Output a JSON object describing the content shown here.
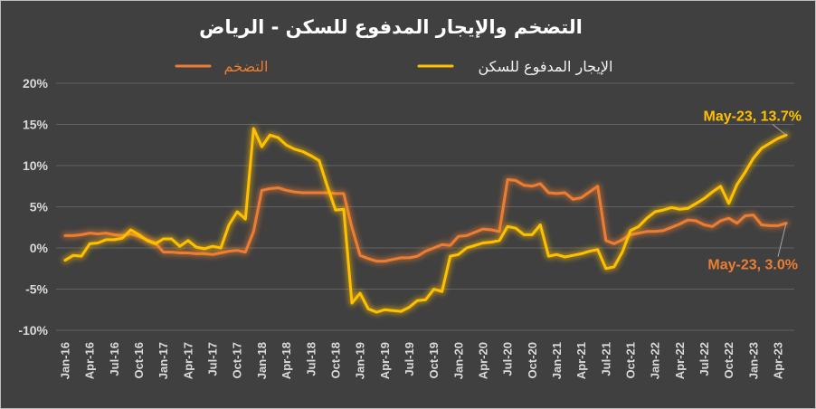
{
  "chart_data": {
    "type": "line",
    "title": "التضخم والإيجار المدفوع للسكن - الرياض",
    "background_color": "#404040",
    "grid": true,
    "legend": "top",
    "ylim": [
      -10,
      20
    ],
    "y_tick_labels": [
      "20%",
      "15%",
      "10%",
      "5%",
      "0%",
      "-5%",
      "-10%"
    ],
    "x_tick_labels": [
      "Jan-16",
      "Apr-16",
      "Jul-16",
      "Oct-16",
      "Jan-17",
      "Apr-17",
      "Jul-17",
      "Oct-17",
      "Jan-18",
      "Apr-18",
      "Jul-18",
      "Oct-18",
      "Jan-19",
      "Apr-19",
      "Jul-19",
      "Oct-19",
      "Jan-20",
      "Apr-20",
      "Jul-20",
      "Oct-20",
      "Jan-21",
      "Apr-21",
      "Jul-21",
      "Oct-21",
      "Jan-22",
      "Apr-22",
      "Jul-22",
      "Oct-22",
      "Jan-23",
      "Apr-23"
    ],
    "x": [
      "Jan-16",
      "Feb-16",
      "Mar-16",
      "Apr-16",
      "May-16",
      "Jun-16",
      "Jul-16",
      "Aug-16",
      "Sep-16",
      "Oct-16",
      "Nov-16",
      "Dec-16",
      "Jan-17",
      "Feb-17",
      "Mar-17",
      "Apr-17",
      "May-17",
      "Jun-17",
      "Jul-17",
      "Aug-17",
      "Sep-17",
      "Oct-17",
      "Nov-17",
      "Dec-17",
      "Jan-18",
      "Feb-18",
      "Mar-18",
      "Apr-18",
      "May-18",
      "Jun-18",
      "Jul-18",
      "Aug-18",
      "Sep-18",
      "Oct-18",
      "Nov-18",
      "Dec-18",
      "Jan-19",
      "Feb-19",
      "Mar-19",
      "Apr-19",
      "May-19",
      "Jun-19",
      "Jul-19",
      "Aug-19",
      "Sep-19",
      "Oct-19",
      "Nov-19",
      "Dec-19",
      "Jan-20",
      "Feb-20",
      "Mar-20",
      "Apr-20",
      "May-20",
      "Jun-20",
      "Jul-20",
      "Aug-20",
      "Sep-20",
      "Oct-20",
      "Nov-20",
      "Dec-20",
      "Jan-21",
      "Feb-21",
      "Mar-21",
      "Apr-21",
      "May-21",
      "Jun-21",
      "Jul-21",
      "Aug-21",
      "Sep-21",
      "Oct-21",
      "Nov-21",
      "Dec-21",
      "Jan-22",
      "Feb-22",
      "Mar-22",
      "Apr-22",
      "May-22",
      "Jun-22",
      "Jul-22",
      "Aug-22",
      "Sep-22",
      "Oct-22",
      "Nov-22",
      "Dec-22",
      "Jan-23",
      "Feb-23",
      "Mar-23",
      "Apr-23",
      "May-23"
    ],
    "series": [
      {
        "name": "التضخم",
        "color": "#ED7D31",
        "values": [
          1.5,
          1.5,
          1.6,
          1.8,
          1.7,
          1.8,
          1.6,
          1.5,
          1.7,
          1.4,
          1.0,
          0.6,
          -0.5,
          -0.5,
          -0.6,
          -0.6,
          -0.7,
          -0.7,
          -0.8,
          -0.6,
          -0.4,
          -0.3,
          -0.5,
          2.0,
          7.0,
          7.2,
          7.3,
          7.0,
          6.8,
          6.7,
          6.7,
          6.7,
          6.7,
          6.6,
          6.6,
          2.5,
          -0.9,
          -1.3,
          -1.6,
          -1.6,
          -1.4,
          -1.2,
          -1.2,
          -1.0,
          -0.4,
          0.0,
          0.4,
          0.3,
          1.4,
          1.5,
          1.9,
          2.3,
          2.2,
          2.0,
          8.3,
          8.2,
          7.6,
          7.5,
          7.8,
          6.7,
          6.6,
          6.7,
          5.9,
          6.1,
          6.8,
          7.5,
          0.9,
          0.5,
          1.0,
          1.6,
          1.8,
          2.0,
          2.0,
          2.1,
          2.5,
          2.9,
          3.4,
          3.3,
          2.8,
          2.6,
          3.3,
          3.6,
          3.0,
          3.9,
          4.0,
          2.8,
          2.7,
          2.7,
          3.0
        ]
      },
      {
        "name": "الإيجار المدفوع للسكن",
        "color": "#FFC000",
        "values": [
          -1.5,
          -0.9,
          -1.0,
          0.5,
          0.6,
          1.0,
          1.0,
          1.2,
          2.2,
          1.6,
          0.9,
          0.5,
          1.1,
          1.1,
          0.2,
          0.9,
          0.1,
          -0.1,
          0.2,
          0.0,
          2.8,
          4.4,
          3.5,
          14.5,
          12.3,
          13.7,
          13.4,
          12.5,
          12.0,
          11.7,
          11.2,
          10.6,
          7.5,
          4.6,
          4.7,
          -6.7,
          -5.5,
          -7.4,
          -7.8,
          -7.5,
          -7.6,
          -7.7,
          -7.2,
          -6.4,
          -6.3,
          -5.0,
          -5.3,
          -1.0,
          -0.8,
          0.0,
          0.3,
          0.6,
          0.7,
          0.9,
          2.6,
          2.4,
          1.6,
          1.6,
          2.8,
          -1.0,
          -0.8,
          -1.1,
          -0.9,
          -0.7,
          -0.4,
          -0.2,
          -2.5,
          -2.3,
          -0.5,
          2.1,
          2.6,
          3.6,
          4.4,
          4.6,
          4.9,
          4.7,
          4.8,
          5.4,
          6.0,
          6.8,
          7.5,
          5.4,
          7.7,
          9.2,
          10.9,
          12.1,
          12.7,
          13.3,
          13.7
        ]
      }
    ],
    "annotations": [
      {
        "text": "May-23, 13.7%",
        "series": "الإيجار المدفوع للسكن",
        "x": "May-23",
        "y": 13.7
      },
      {
        "text": "May-23, 3.0%",
        "series": "التضخم",
        "x": "May-23",
        "y": 3.0
      }
    ]
  }
}
